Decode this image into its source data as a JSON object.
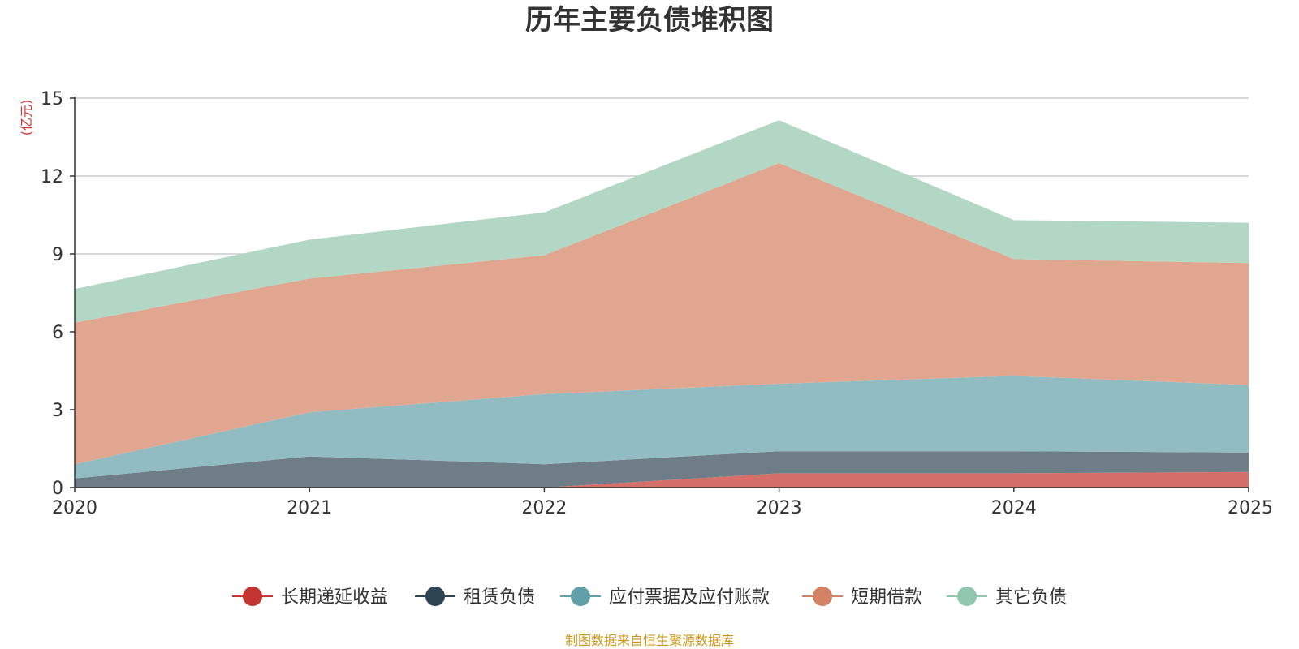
{
  "chart_data": {
    "type": "area",
    "stacked": true,
    "title": "历年主要负债堆积图",
    "unit_label": "(亿元)",
    "x": [
      "2020",
      "2021",
      "2022",
      "2023",
      "2024",
      "2025"
    ],
    "ylim": [
      0,
      15
    ],
    "yticks": [
      "0",
      "3",
      "6",
      "9",
      "12",
      "15"
    ],
    "grid": true,
    "legend_position": "bottom",
    "source": "制图数据来自恒生聚源数据库",
    "series": [
      {
        "name": "长期递延收益",
        "color": "#c23531",
        "fill": "#d46f6a",
        "values": [
          0.0,
          0.0,
          0.0,
          0.55,
          0.55,
          0.6
        ]
      },
      {
        "name": "租赁负债",
        "color": "#2f4554",
        "fill": "#6f7d88",
        "values": [
          0.35,
          1.2,
          0.9,
          0.85,
          0.85,
          0.75
        ]
      },
      {
        "name": "应付票据及应付账款",
        "color": "#61a0a8",
        "fill": "#91bcc2",
        "values": [
          0.55,
          1.7,
          2.7,
          2.6,
          2.9,
          2.6
        ]
      },
      {
        "name": "短期借款",
        "color": "#d48265",
        "fill": "#e0a690",
        "values": [
          5.45,
          5.15,
          5.35,
          8.5,
          4.5,
          4.7
        ]
      },
      {
        "name": "其它负债",
        "color": "#91c7ae",
        "fill": "#b2d7c5",
        "values": [
          1.3,
          1.5,
          1.65,
          1.65,
          1.5,
          1.55
        ]
      }
    ]
  }
}
